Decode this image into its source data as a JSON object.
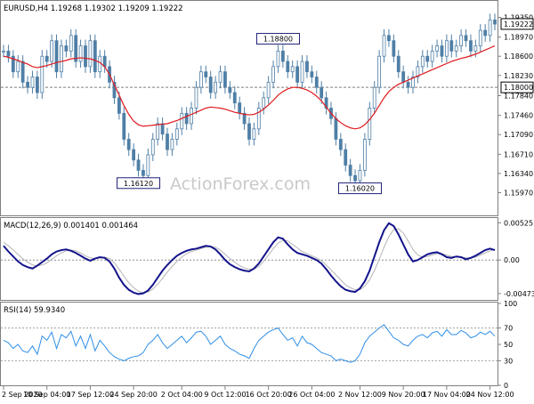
{
  "chart_data": [
    {
      "type": "line",
      "panel": "price",
      "title": "EURUSD,H4 1.19268 1.19302 1.19209 1.19222",
      "ylim": [
        1.1555,
        1.1965
      ],
      "y_ticks": [
        "1.19350",
        "1.18970",
        "1.18600",
        "1.18230",
        "1.17840",
        "1.17460",
        "1.17090",
        "1.16710",
        "1.16340",
        "1.15970"
      ],
      "y_tick_values": [
        1.1935,
        1.1897,
        1.186,
        1.1823,
        1.1784,
        1.1746,
        1.1709,
        1.1671,
        1.1634,
        1.1597
      ],
      "current_price_label": "1.19222",
      "current_price": 1.19222,
      "hline_label": "1.18000",
      "hline_value": 1.18,
      "annotations": [
        {
          "text": "1.18800",
          "x_index": 57,
          "y": 1.188
        },
        {
          "text": "1.16120",
          "x_index": 28,
          "y": 1.1612
        },
        {
          "text": "1.16020",
          "x_index": 74,
          "y": 1.1602
        }
      ],
      "watermark": "ActionForex.com",
      "series": [
        {
          "values": [
            1.187,
            1.186,
            1.183,
            1.185,
            1.181,
            1.18,
            1.182,
            1.179,
            1.186,
            1.185,
            1.189,
            1.183,
            1.188,
            1.187,
            1.19,
            1.185,
            1.188,
            1.184,
            1.189,
            1.183,
            1.186,
            1.184,
            1.181,
            1.178,
            1.175,
            1.17,
            1.168,
            1.166,
            1.164,
            1.163,
            1.167,
            1.17,
            1.173,
            1.171,
            1.168,
            1.17,
            1.172,
            1.175,
            1.173,
            1.176,
            1.18,
            1.183,
            1.182,
            1.179,
            1.181,
            1.183,
            1.18,
            1.179,
            1.177,
            1.175,
            1.173,
            1.17,
            1.172,
            1.176,
            1.178,
            1.181,
            1.184,
            1.187,
            1.185,
            1.183,
            1.184,
            1.181,
            1.185,
            1.183,
            1.182,
            1.18,
            1.178,
            1.176,
            1.174,
            1.17,
            1.168,
            1.165,
            1.163,
            1.162,
            1.164,
            1.17,
            1.176,
            1.18,
            1.186,
            1.19,
            1.189,
            1.186,
            1.183,
            1.181,
            1.18,
            1.182,
            1.184,
            1.186,
            1.185,
            1.187,
            1.188,
            1.186,
            1.189,
            1.187,
            1.188,
            1.19,
            1.189,
            1.187,
            1.188,
            1.191,
            1.19,
            1.193,
            1.1922
          ]
        },
        {
          "values": [
            1.186,
            1.1858,
            1.1855,
            1.1852,
            1.1848,
            1.1845,
            1.184,
            1.1838,
            1.184,
            1.1842,
            1.1845,
            1.1848,
            1.185,
            1.1852,
            1.1855,
            1.1856,
            1.1857,
            1.1856,
            1.1855,
            1.1852,
            1.1848,
            1.184,
            1.1825,
            1.1805,
            1.1785,
            1.1765,
            1.1748,
            1.1735,
            1.1728,
            1.1725,
            1.1726,
            1.1727,
            1.1728,
            1.1729,
            1.173,
            1.1733,
            1.1736,
            1.174,
            1.1744,
            1.1748,
            1.1752,
            1.1756,
            1.176,
            1.1762,
            1.1761,
            1.176,
            1.1758,
            1.1755,
            1.1752,
            1.175,
            1.1748,
            1.1747,
            1.1748,
            1.1752,
            1.1758,
            1.1766,
            1.1775,
            1.1785,
            1.1792,
            1.1797,
            1.18,
            1.18,
            1.1798,
            1.1795,
            1.179,
            1.1783,
            1.1774,
            1.1762,
            1.175,
            1.174,
            1.1732,
            1.1726,
            1.1722,
            1.172,
            1.1722,
            1.1728,
            1.1738,
            1.175,
            1.1765,
            1.178,
            1.1792,
            1.18,
            1.1806,
            1.181,
            1.1814,
            1.1818,
            1.1822,
            1.1826,
            1.183,
            1.1834,
            1.1838,
            1.1842,
            1.1846,
            1.185,
            1.1853,
            1.1856,
            1.1858,
            1.1861,
            1.1864,
            1.1868,
            1.1872,
            1.1876,
            1.188
          ]
        }
      ]
    },
    {
      "type": "line",
      "panel": "macd",
      "title": "MACD(12,26,9) 0.001401 0.001464",
      "ylim": [
        -0.0055,
        0.0058
      ],
      "y_ticks": [
        "0.00525",
        "0.00",
        "-0.004732"
      ],
      "y_tick_values": [
        0.00525,
        0.0,
        -0.004732
      ],
      "zero_line": 0,
      "series": [
        {
          "values": [
            0.002,
            0.0012,
            0.0005,
            -0.0002,
            -0.0007,
            -0.001,
            -0.0012,
            -0.0008,
            -0.0003,
            0.0002,
            0.0008,
            0.0012,
            0.0014,
            0.0015,
            0.0013,
            0.001,
            0.0006,
            0.0002,
            -0.0001,
            0.0002,
            0.0004,
            0.0003,
            -0.0002,
            -0.0012,
            -0.0025,
            -0.0035,
            -0.0042,
            -0.0046,
            -0.0048,
            -0.0047,
            -0.0043,
            -0.0035,
            -0.0025,
            -0.0015,
            -0.0007,
            0.0,
            0.0006,
            0.001,
            0.0013,
            0.0015,
            0.0016,
            0.0018,
            0.002,
            0.0019,
            0.0015,
            0.0008,
            0.0,
            -0.0006,
            -0.001,
            -0.0013,
            -0.0015,
            -0.0016,
            -0.0012,
            -0.0005,
            0.0005,
            0.0015,
            0.0025,
            0.0032,
            0.003,
            0.0022,
            0.0015,
            0.001,
            0.0008,
            0.0006,
            0.0003,
            0.0,
            -0.0005,
            -0.0013,
            -0.0022,
            -0.003,
            -0.0037,
            -0.0042,
            -0.0044,
            -0.0045,
            -0.004,
            -0.003,
            -0.0015,
            0.0005,
            0.0025,
            0.0042,
            0.0052,
            0.0048,
            0.0036,
            0.0022,
            0.0008,
            -0.0002,
            0.0,
            0.0004,
            0.0008,
            0.001,
            0.0011,
            0.0008,
            0.0004,
            0.0003,
            0.0005,
            0.0004,
            0.0001,
            0.0003,
            0.0006,
            0.001,
            0.0014,
            0.0016,
            0.0014
          ]
        },
        {
          "values": [
            0.0025,
            0.002,
            0.0014,
            0.0008,
            0.0002,
            -0.0003,
            -0.0007,
            -0.0008,
            -0.0007,
            -0.0004,
            0.0001,
            0.0006,
            0.001,
            0.0013,
            0.0014,
            0.0013,
            0.001,
            0.0006,
            0.0003,
            0.0002,
            0.0003,
            0.0004,
            0.0002,
            -0.0004,
            -0.0013,
            -0.0023,
            -0.0032,
            -0.0039,
            -0.0044,
            -0.0046,
            -0.0045,
            -0.0041,
            -0.0034,
            -0.0026,
            -0.0017,
            -0.0009,
            -0.0002,
            0.0004,
            0.0009,
            0.0012,
            0.0014,
            0.0016,
            0.0018,
            0.0019,
            0.0018,
            0.0014,
            0.0008,
            0.0002,
            -0.0003,
            -0.0008,
            -0.0011,
            -0.0013,
            -0.0013,
            -0.0009,
            -0.0002,
            0.0007,
            0.0016,
            0.0024,
            0.0028,
            0.0027,
            0.0022,
            0.0017,
            0.0012,
            0.0009,
            0.0006,
            0.0003,
            -0.0001,
            -0.0007,
            -0.0014,
            -0.0021,
            -0.0028,
            -0.0035,
            -0.0039,
            -0.0042,
            -0.0042,
            -0.0037,
            -0.0028,
            -0.0015,
            0.0001,
            0.0018,
            0.0033,
            0.0043,
            0.0044,
            0.0038,
            0.0027,
            0.0015,
            0.0007,
            0.0004,
            0.0005,
            0.0007,
            0.0009,
            0.0009,
            0.0007,
            0.0005,
            0.0004,
            0.0004,
            0.0003,
            0.0003,
            0.0004,
            0.0007,
            0.001,
            0.0013,
            0.0015
          ]
        }
      ]
    },
    {
      "type": "line",
      "panel": "rsi",
      "title": "RSI(14) 59.9340",
      "ylim": [
        0,
        100
      ],
      "y_ticks": [
        "100",
        "70",
        "50",
        "30",
        "0"
      ],
      "y_tick_values": [
        100,
        70,
        50,
        30,
        0
      ],
      "x_ticks": [
        "2 Sep 2020",
        "10 Sep 04:00",
        "17 Sep 12:00",
        "24 Sep 20:00",
        "2 Oct 04:00",
        "9 Oct 12:00",
        "16 Oct 20:00",
        "26 Oct 04:00",
        "2 Nov 12:00",
        "9 Nov 20:00",
        "17 Nov 04:00",
        "24 Nov 12:00"
      ],
      "x_tick_index": [
        0,
        9,
        18,
        27,
        37,
        46,
        55,
        64,
        74,
        83,
        92,
        101
      ],
      "series": [
        {
          "values": [
            55,
            52,
            45,
            50,
            42,
            40,
            48,
            38,
            60,
            55,
            65,
            45,
            62,
            58,
            66,
            48,
            60,
            45,
            62,
            42,
            55,
            48,
            40,
            35,
            32,
            30,
            33,
            35,
            36,
            40,
            50,
            55,
            62,
            52,
            45,
            50,
            55,
            60,
            52,
            58,
            65,
            66,
            60,
            50,
            55,
            60,
            50,
            45,
            42,
            38,
            36,
            33,
            45,
            55,
            60,
            65,
            68,
            70,
            62,
            55,
            58,
            48,
            60,
            52,
            50,
            45,
            40,
            38,
            36,
            30,
            32,
            30,
            28,
            30,
            38,
            52,
            60,
            65,
            70,
            74,
            66,
            58,
            55,
            50,
            48,
            55,
            60,
            62,
            58,
            64,
            66,
            60,
            68,
            62,
            62,
            67,
            64,
            58,
            60,
            65,
            62,
            66,
            60
          ]
        }
      ]
    }
  ]
}
